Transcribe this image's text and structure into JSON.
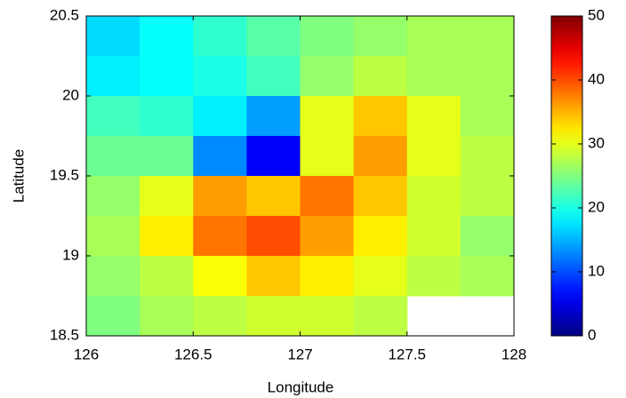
{
  "chart_data": {
    "type": "heatmap",
    "x_label": "Longitude",
    "y_label": "Latitude",
    "x": [
      126.125,
      126.375,
      126.625,
      126.875,
      127.125,
      127.375,
      127.625,
      127.875
    ],
    "y": [
      20.375,
      20.125,
      19.875,
      19.625,
      19.375,
      19.125,
      18.875,
      18.625
    ],
    "values": [
      [
        17,
        19,
        21,
        23,
        25,
        26,
        27,
        27
      ],
      [
        18,
        19,
        20,
        22,
        26,
        28,
        27,
        27
      ],
      [
        22,
        21,
        18,
        14,
        30,
        34,
        30,
        27
      ],
      [
        24,
        24,
        13,
        6,
        30,
        36,
        30,
        28
      ],
      [
        26,
        30,
        36,
        34,
        38,
        34,
        29,
        28
      ],
      [
        27,
        32,
        38,
        40,
        36,
        32,
        29,
        26
      ],
      [
        26,
        28,
        31,
        34,
        32,
        30,
        28,
        27
      ],
      [
        25,
        27,
        28,
        29,
        29,
        28,
        null,
        null
      ]
    ],
    "xlim": [
      126,
      128
    ],
    "ylim": [
      18.5,
      20.5
    ],
    "xticks": [
      126,
      126.5,
      127,
      127.5,
      128
    ],
    "yticks": [
      18.5,
      19,
      19.5,
      20,
      20.5
    ],
    "colormap": "jet",
    "clim": [
      0,
      50
    ],
    "cticks": [
      0,
      10,
      20,
      30,
      40,
      50
    ]
  }
}
